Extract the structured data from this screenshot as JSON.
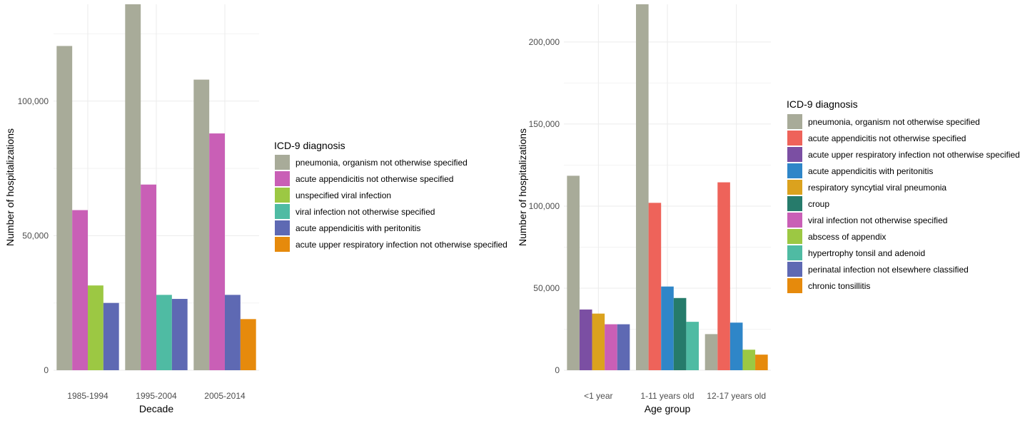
{
  "chart_data": [
    {
      "type": "bar",
      "xlabel": "Decade",
      "ylabel": "Number of hospitalizations",
      "ylim": [
        0,
        136000
      ],
      "yticks": [
        0,
        50000,
        100000
      ],
      "ytick_labels": [
        "0",
        "50,000",
        "100,000"
      ],
      "categories": [
        "1985-1994",
        "1995-2004",
        "2005-2014"
      ],
      "legend_title": "ICD-9 diagnosis",
      "legend_position": "right",
      "grid": true,
      "series": [
        {
          "name": "pneumonia, organism not otherwise specified",
          "color": "#a8ab99",
          "values": [
            120500,
            136000,
            108000
          ]
        },
        {
          "name": "acute appendicitis not otherwise specified",
          "color": "#c95fb6",
          "values": [
            59500,
            69000,
            88000
          ]
        },
        {
          "name": "unspecified viral infection",
          "color": "#9cc843",
          "values": [
            31500,
            null,
            null
          ]
        },
        {
          "name": "viral infection not otherwise specified",
          "color": "#4fbba3",
          "values": [
            null,
            28000,
            null
          ]
        },
        {
          "name": "acute appendicitis with peritonitis",
          "color": "#5e69b3",
          "values": [
            25000,
            26500,
            28000
          ]
        },
        {
          "name": "acute upper respiratory infection not otherwise specified",
          "color": "#e68a0c",
          "values": [
            null,
            null,
            19000
          ]
        }
      ]
    },
    {
      "type": "bar",
      "xlabel": "Age group",
      "ylabel": "Number of hospitalizations",
      "ylim": [
        0,
        223000
      ],
      "yticks": [
        0,
        50000,
        100000,
        150000,
        200000
      ],
      "ytick_labels": [
        "0",
        "50,000",
        "100,000",
        "150,000",
        "200,000"
      ],
      "categories": [
        "<1 year",
        "1-11 years old",
        "12-17 years old"
      ],
      "legend_title": "ICD-9 diagnosis",
      "legend_position": "right",
      "grid": true,
      "series": [
        {
          "name": "pneumonia, organism not otherwise specified",
          "color": "#a8ab99",
          "values": [
            118500,
            223000,
            22000
          ]
        },
        {
          "name": "acute appendicitis not otherwise specified",
          "color": "#ee635a",
          "values": [
            null,
            102000,
            114500
          ]
        },
        {
          "name": "acute upper respiratory infection not otherwise specified",
          "color": "#7b4fa3",
          "values": [
            37000,
            null,
            null
          ]
        },
        {
          "name": "acute appendicitis with peritonitis",
          "color": "#2f86c8",
          "values": [
            null,
            51000,
            29000
          ]
        },
        {
          "name": "respiratory syncytial viral pneumonia",
          "color": "#dba21e",
          "values": [
            34500,
            null,
            null
          ]
        },
        {
          "name": "croup",
          "color": "#267b6b",
          "values": [
            null,
            44000,
            null
          ]
        },
        {
          "name": "viral infection not otherwise specified",
          "color": "#c95fb6",
          "values": [
            28000,
            null,
            null
          ]
        },
        {
          "name": "abscess of appendix",
          "color": "#9cc843",
          "values": [
            null,
            null,
            12500
          ]
        },
        {
          "name": "hypertrophy tonsil and adenoid",
          "color": "#4fbba3",
          "values": [
            null,
            29500,
            null
          ]
        },
        {
          "name": "perinatal infection not elsewhere classified",
          "color": "#5e69b3",
          "values": [
            28000,
            null,
            null
          ]
        },
        {
          "name": "chronic tonsillitis",
          "color": "#e68a0c",
          "values": [
            null,
            null,
            9500
          ]
        }
      ]
    }
  ]
}
